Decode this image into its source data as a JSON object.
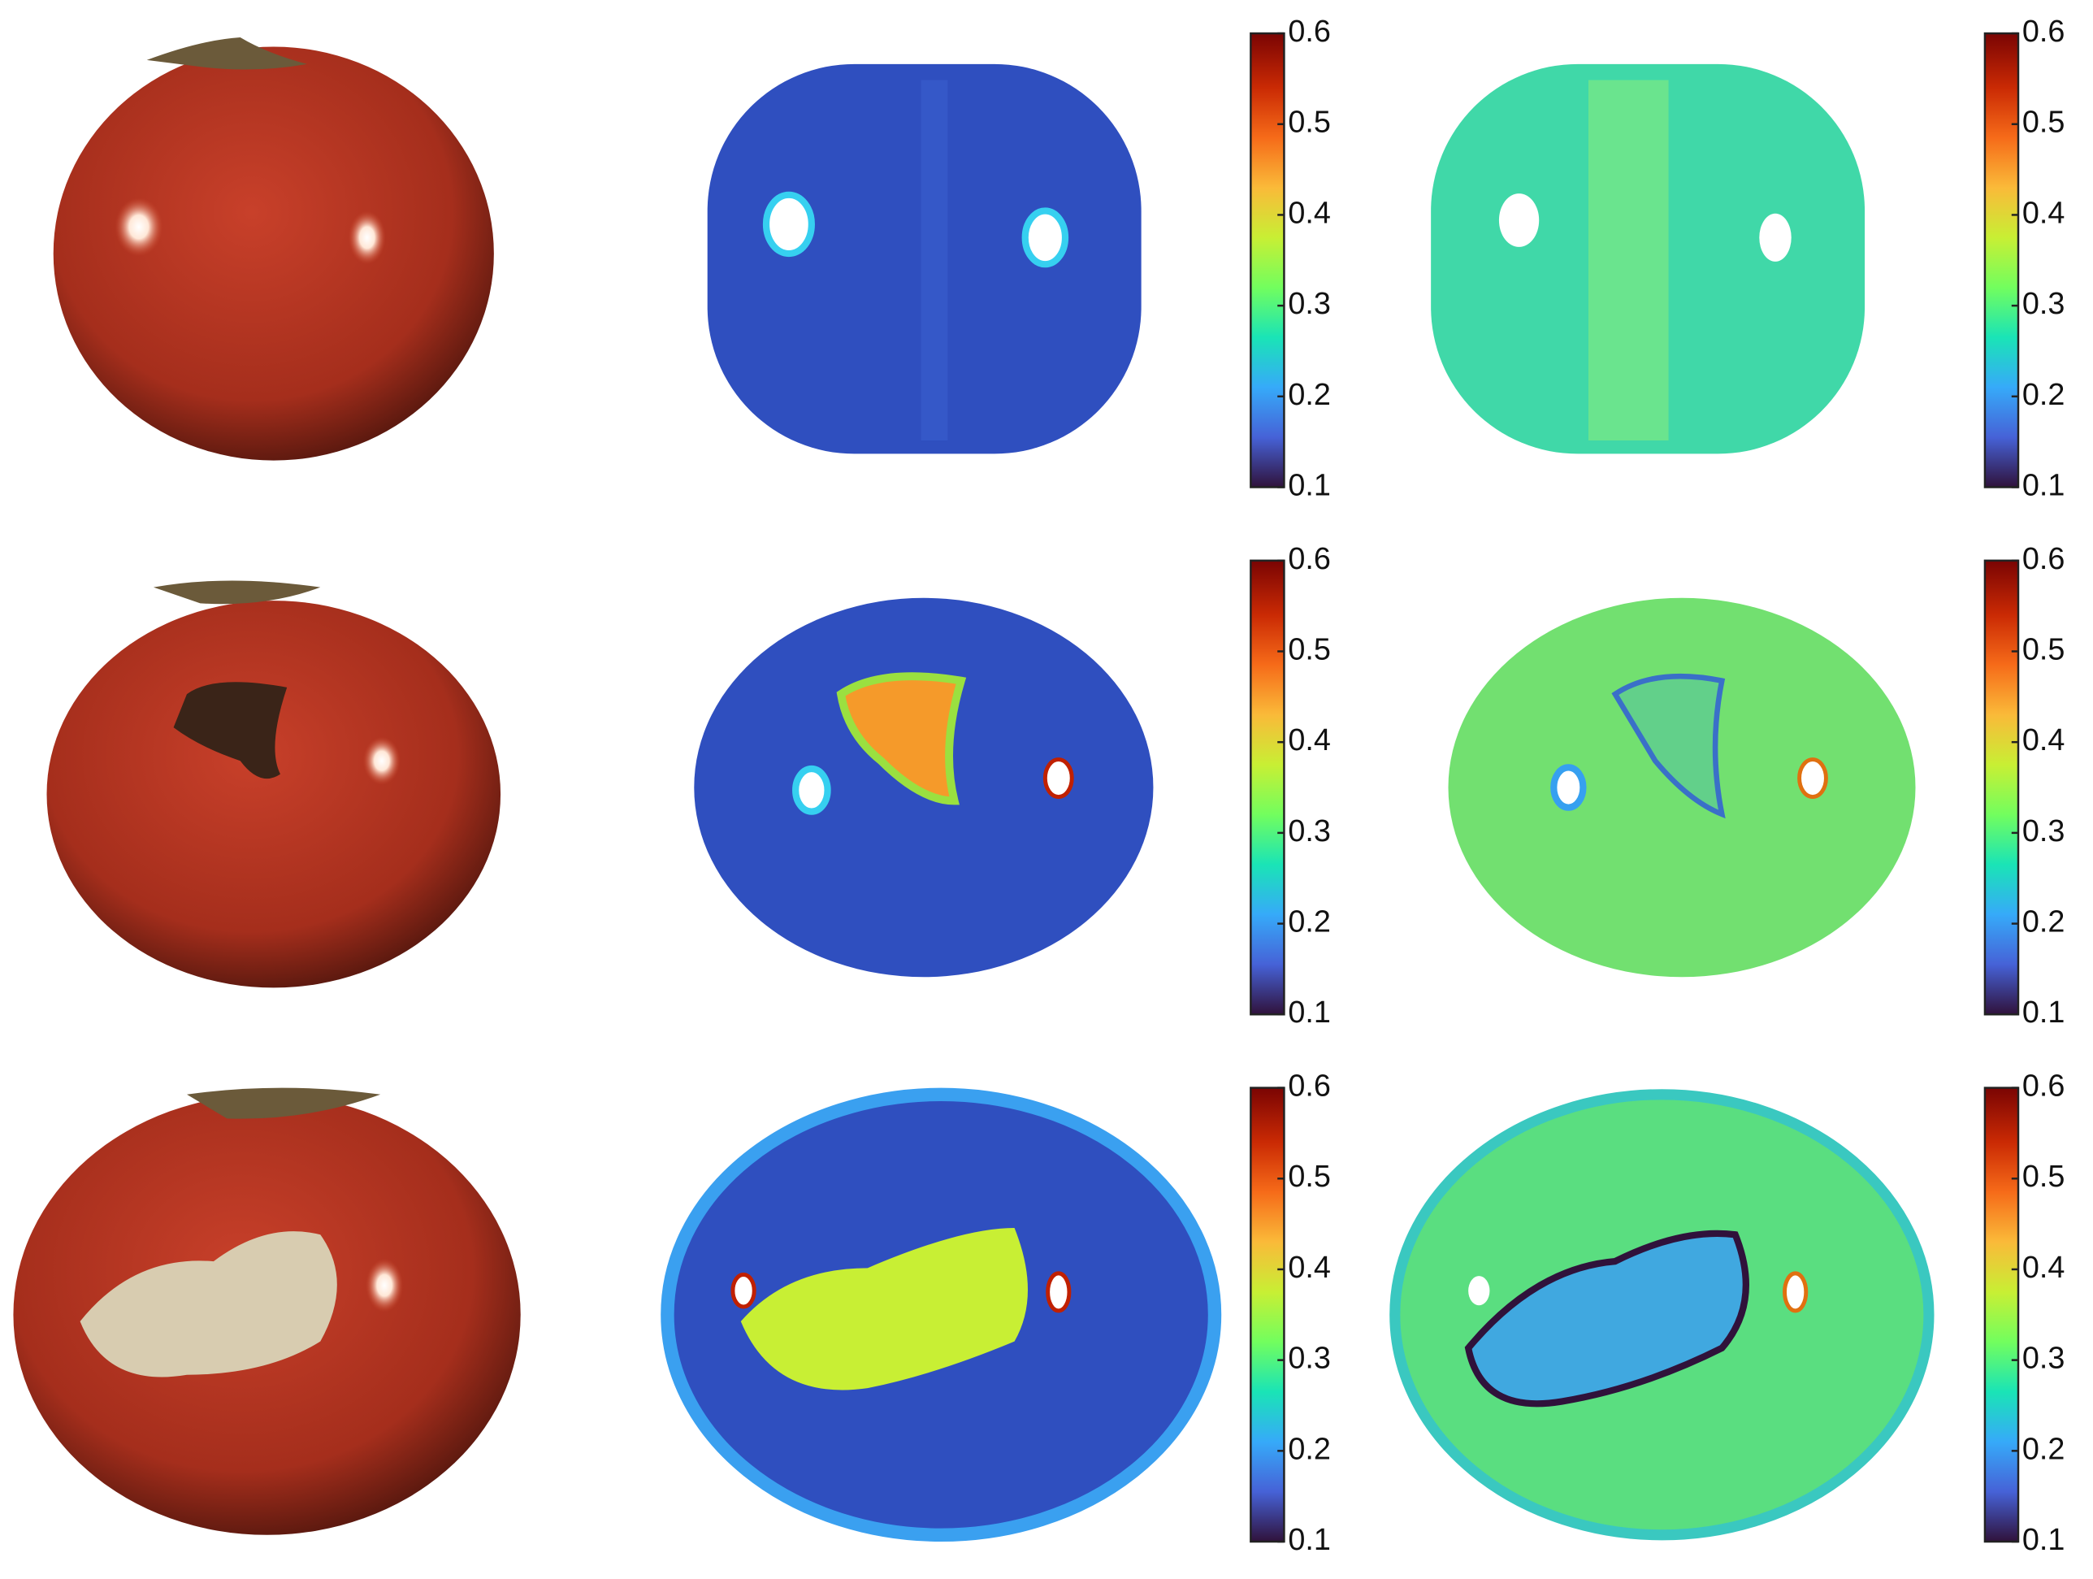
{
  "colorbars": [
    {
      "lim": [
        0.1,
        0.6
      ],
      "ticks": [
        0.1,
        0.2,
        0.3,
        0.4,
        0.5,
        0.6
      ]
    },
    {
      "lim": [
        0.1,
        0.6
      ],
      "ticks": [
        0.1,
        0.2,
        0.3,
        0.4,
        0.5,
        0.6
      ]
    },
    {
      "lim": [
        0.1,
        0.6
      ],
      "ticks": [
        0.1,
        0.2,
        0.3,
        0.4,
        0.5,
        0.6
      ]
    },
    {
      "lim": [
        0.1,
        0.6
      ],
      "ticks": [
        0.1,
        0.2,
        0.3,
        0.4,
        0.5,
        0.6
      ]
    },
    {
      "lim": [
        0.1,
        0.6
      ],
      "ticks": [
        0.1,
        0.2,
        0.3,
        0.4,
        0.5,
        0.6
      ]
    },
    {
      "lim": [
        0.1,
        0.6
      ],
      "ticks": [
        0.1,
        0.2,
        0.3,
        0.4,
        0.5,
        0.6
      ]
    }
  ]
}
